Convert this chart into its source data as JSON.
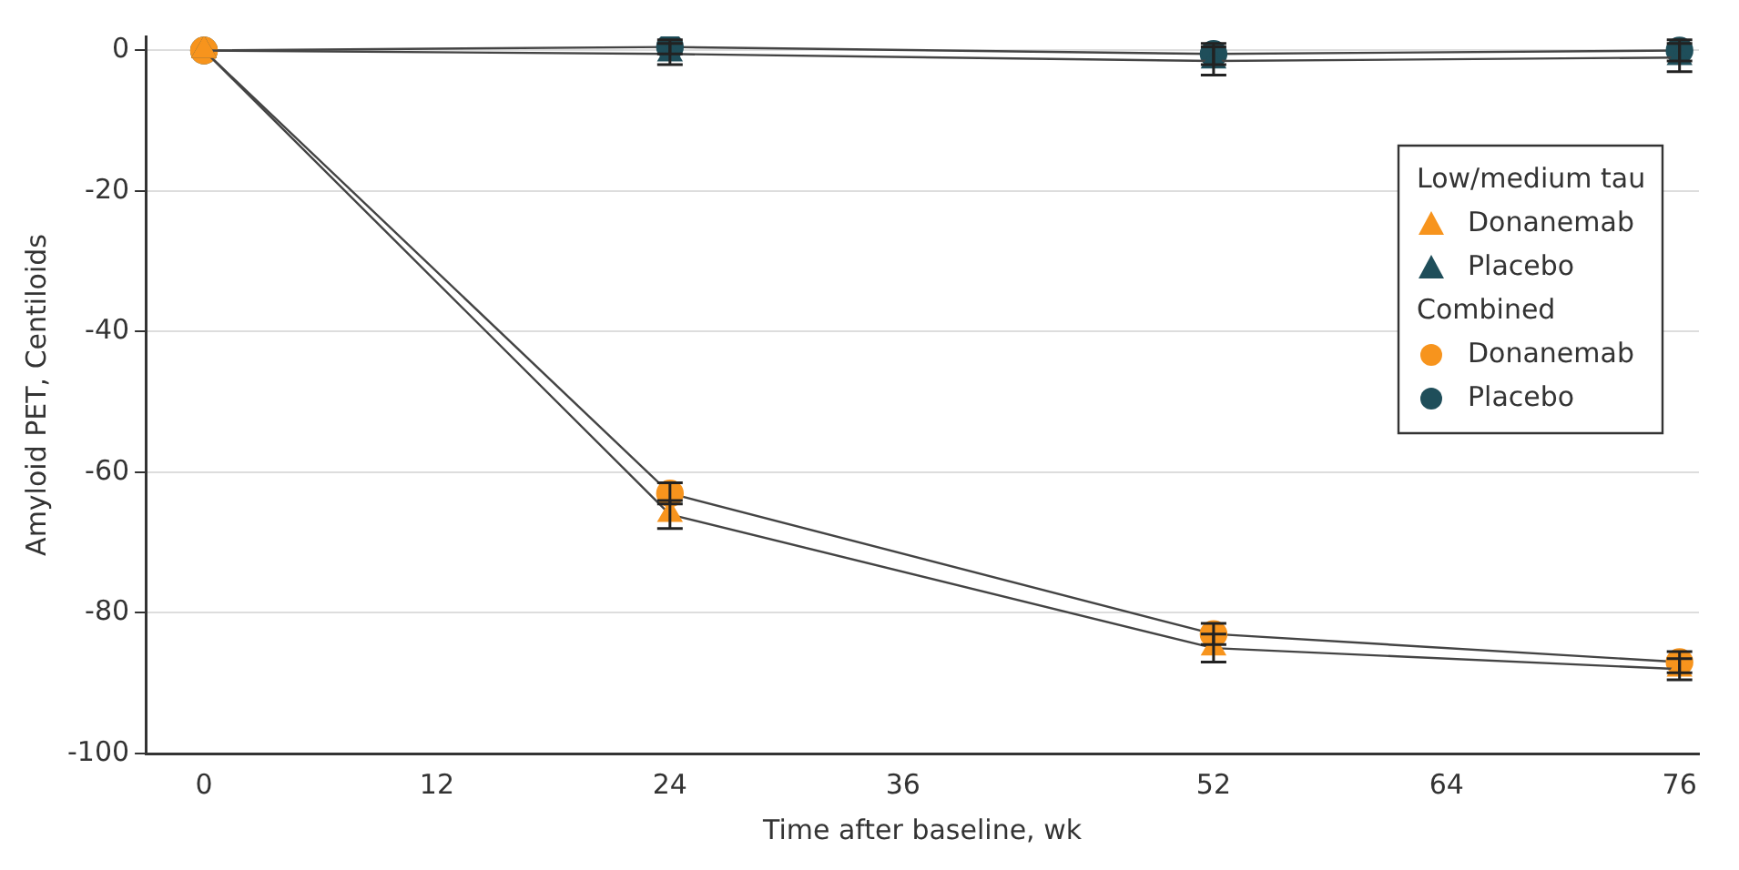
{
  "chart_data": {
    "type": "line",
    "xlabel": "Time after baseline, wk",
    "ylabel": "Amyloid PET, Centiloids",
    "xlim": [
      -3,
      77
    ],
    "xticks": [
      0,
      12,
      24,
      36,
      52,
      64,
      76
    ],
    "ylim": [
      -100,
      2
    ],
    "yticks": [
      -100,
      -80,
      -60,
      -40,
      -20,
      0
    ],
    "grid": "y",
    "legend": "right",
    "legend_title": "Low/medium tau",
    "annotations": [
      "Combined"
    ],
    "series": [
      {
        "name": "Donanemab",
        "color": "#f7941d",
        "marker": "triangle",
        "x": [
          0,
          24,
          52,
          76
        ],
        "values": [
          0,
          -66,
          -85,
          -88
        ],
        "errors": [
          null,
          2,
          2,
          1.5
        ]
      },
      {
        "name": "Placebo",
        "color": "#1f4e5a",
        "marker": "triangle",
        "x": [
          0,
          24,
          52,
          76
        ],
        "values": [
          0,
          -0.5,
          -1.5,
          -1
        ],
        "errors": [
          null,
          1.5,
          2,
          2
        ]
      },
      {
        "name": "Donanemab",
        "color": "#f7941d",
        "marker": "circle",
        "x": [
          0,
          24,
          52,
          76
        ],
        "values": [
          0,
          -63,
          -83,
          -87
        ],
        "errors": [
          null,
          1.5,
          1.5,
          1.5
        ]
      },
      {
        "name": "Placebo",
        "color": "#1f4e5a",
        "marker": "circle",
        "x": [
          0,
          24,
          52,
          76
        ],
        "values": [
          0,
          0.5,
          -0.5,
          0
        ],
        "errors": [
          null,
          1,
          1.5,
          1.5
        ]
      }
    ]
  }
}
